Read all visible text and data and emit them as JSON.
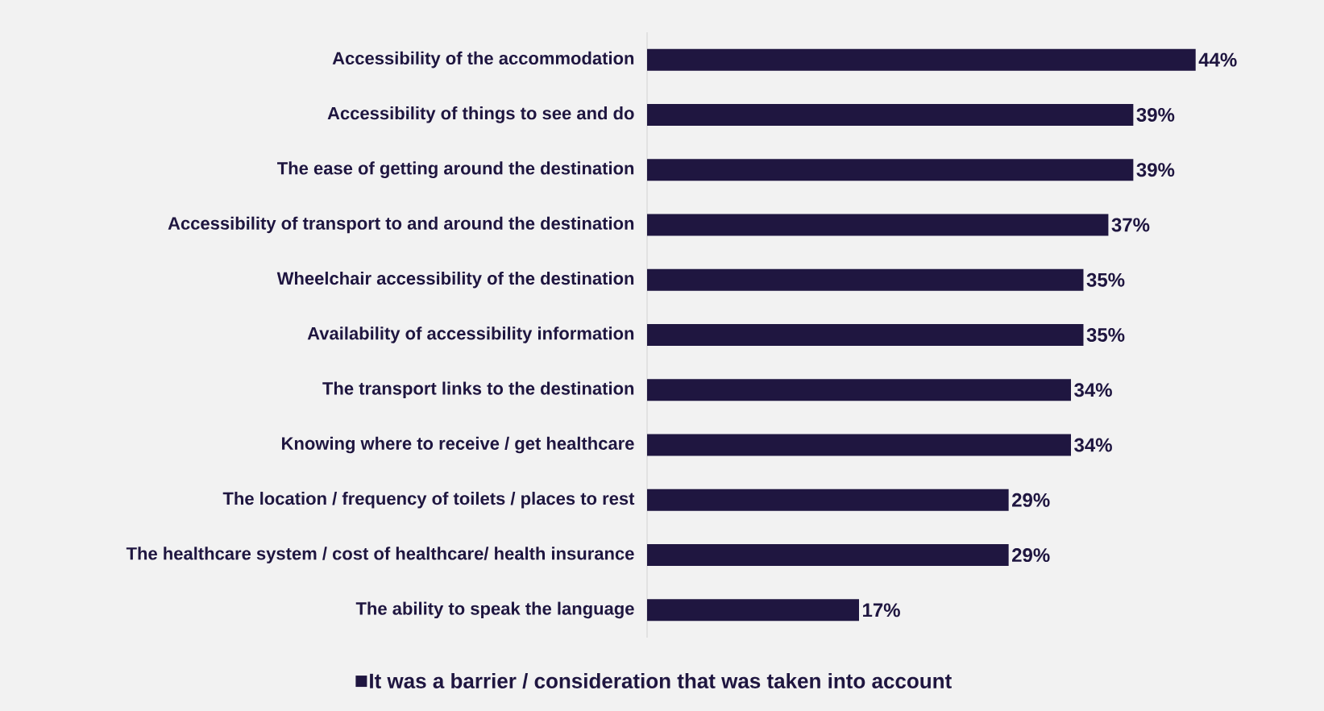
{
  "chart_data": {
    "type": "bar",
    "orientation": "horizontal",
    "categories": [
      "Accessibility of the accommodation",
      "Accessibility of things to see and do",
      "The ease of getting around the destination",
      "Accessibility of transport to and around the destination",
      "Wheelchair accessibility of the destination",
      "Availability of accessibility information",
      "The transport links to the destination",
      "Knowing where to receive / get healthcare",
      "The location / frequency of toilets / places to rest",
      "The healthcare system / cost of healthcare/ health insurance",
      "The ability to speak the language"
    ],
    "series": [
      {
        "name": "It was a barrier / consideration that was taken into account",
        "color": "#1f1640",
        "values": [
          44,
          39,
          39,
          37,
          35,
          35,
          34,
          34,
          29,
          29,
          17
        ],
        "value_labels": [
          "44%",
          "39%",
          "39%",
          "37%",
          "35%",
          "35%",
          "34%",
          "34%",
          "29%",
          "29%",
          "17%"
        ]
      }
    ],
    "legend": "bottom"
  }
}
